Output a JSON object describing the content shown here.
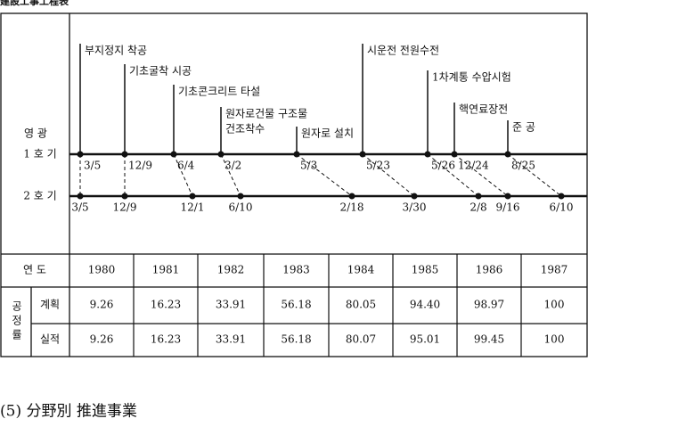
{
  "title": "建設工事工程表",
  "diagram": {
    "region": "영   광",
    "milestones": [
      "부지정지 착공",
      "기초굴착 시공",
      "기초콘크리트 타설",
      "원자로건물 구조물",
      "건조착수",
      "원자로 설치",
      "시운전 전원수전",
      "1차계통 수압시험",
      "핵연료장전",
      "준   공"
    ],
    "units": [
      {
        "label": "1 호 기",
        "dates": [
          "3/5",
          "12/9",
          "6/4",
          "3/2",
          "5/3",
          "5/23",
          "5/26",
          "12/24",
          "8/25"
        ]
      },
      {
        "label": "2 호 기",
        "dates": [
          "3/5",
          "12/9",
          "12/1",
          "6/10",
          "2/18",
          "3/30",
          "2/8",
          "9/16",
          "6/10"
        ]
      }
    ]
  },
  "table": {
    "year_label": "연  도",
    "years": [
      "1980",
      "1981",
      "1982",
      "1983",
      "1984",
      "1985",
      "1986",
      "1987"
    ],
    "group_label": "공정률",
    "rows": [
      {
        "label": "계획",
        "values": [
          "9.26",
          "16.23",
          "33.91",
          "56.18",
          "80.05",
          "94.40",
          "98.97",
          "100"
        ]
      },
      {
        "label": "실적",
        "values": [
          "9.26",
          "16.23",
          "33.91",
          "56.18",
          "80.07",
          "95.01",
          "99.45",
          "100"
        ]
      }
    ]
  },
  "footer": "(5) 分野別  推進事業"
}
